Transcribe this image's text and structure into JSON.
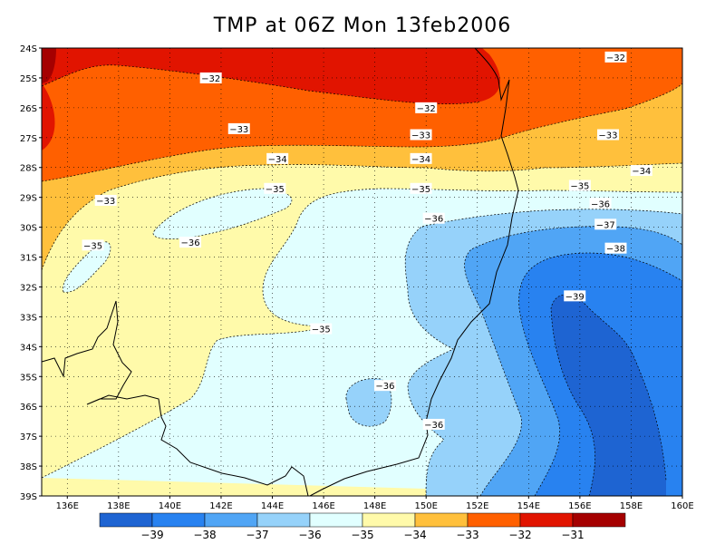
{
  "title": "TMP at 06Z Mon 13feb2006",
  "map": {
    "lon_range": [
      135,
      160
    ],
    "lat_range": [
      -39,
      -24
    ],
    "lat_labels": [
      "24S",
      "25S",
      "26S",
      "27S",
      "28S",
      "29S",
      "30S",
      "31S",
      "32S",
      "33S",
      "34S",
      "35S",
      "36S",
      "37S",
      "38S",
      "39S"
    ],
    "lon_labels": [
      "136E",
      "138E",
      "140E",
      "142E",
      "144E",
      "146E",
      "148E",
      "150E",
      "152E",
      "154E",
      "156E",
      "158E",
      "160E"
    ],
    "grid": "dotted",
    "contour_labels": [
      {
        "text": "-32",
        "lon": 141.6,
        "lat": -25.0
      },
      {
        "text": "-32",
        "lon": 150.0,
        "lat": -26.0
      },
      {
        "text": "-32",
        "lon": 157.4,
        "lat": -24.3
      },
      {
        "text": "-33",
        "lon": 142.7,
        "lat": -26.7
      },
      {
        "text": "-33",
        "lon": 149.8,
        "lat": -26.9
      },
      {
        "text": "-33",
        "lon": 157.1,
        "lat": -26.9
      },
      {
        "text": "-33",
        "lon": 137.5,
        "lat": -29.1
      },
      {
        "text": "-34",
        "lon": 144.2,
        "lat": -27.7
      },
      {
        "text": "-34",
        "lon": 149.8,
        "lat": -27.7
      },
      {
        "text": "-34",
        "lon": 158.4,
        "lat": -28.1
      },
      {
        "text": "-35",
        "lon": 144.1,
        "lat": -28.7
      },
      {
        "text": "-35",
        "lon": 149.8,
        "lat": -28.7
      },
      {
        "text": "-35",
        "lon": 156.0,
        "lat": -28.6
      },
      {
        "text": "-35",
        "lon": 137.0,
        "lat": -30.6
      },
      {
        "text": "-35",
        "lon": 145.9,
        "lat": -33.4
      },
      {
        "text": "-36",
        "lon": 140.8,
        "lat": -30.5
      },
      {
        "text": "-36",
        "lon": 150.3,
        "lat": -29.7
      },
      {
        "text": "-36",
        "lon": 156.8,
        "lat": -29.2
      },
      {
        "text": "-36",
        "lon": 148.4,
        "lat": -35.3
      },
      {
        "text": "-36",
        "lon": 150.3,
        "lat": -36.6
      },
      {
        "text": "-37",
        "lon": 157.0,
        "lat": -29.9
      },
      {
        "text": "-38",
        "lon": 157.4,
        "lat": -30.7
      },
      {
        "text": "-39",
        "lon": 155.8,
        "lat": -32.3
      }
    ]
  },
  "colorbar": {
    "colors": [
      "#1e64d2",
      "#2882f0",
      "#50a5f5",
      "#96d2fa",
      "#e1ffff",
      "#fffaaa",
      "#ffc03c",
      "#ff6000",
      "#e11400",
      "#a50000"
    ],
    "tick_labels": [
      "-39",
      "-38",
      "-37",
      "-36",
      "-35",
      "-34",
      "-33",
      "-32",
      "-31"
    ]
  }
}
